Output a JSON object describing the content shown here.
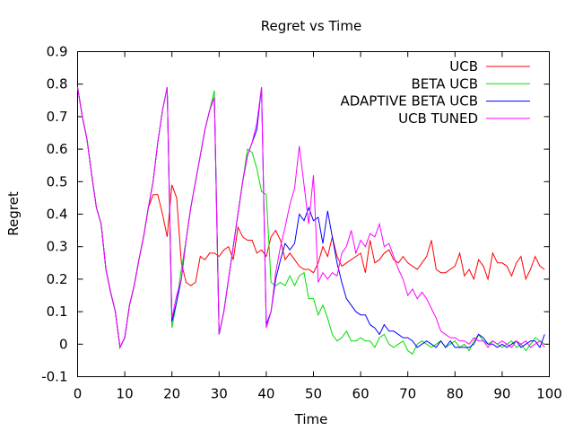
{
  "chart_data": {
    "type": "line",
    "title": "Regret vs Time",
    "xlabel": "Time",
    "ylabel": "Regret",
    "xlim": [
      0,
      100
    ],
    "ylim": [
      -0.1,
      0.9
    ],
    "xticks": [
      0,
      10,
      20,
      30,
      40,
      50,
      60,
      70,
      80,
      90,
      100
    ],
    "yticks": [
      -0.1,
      0,
      0.1,
      0.2,
      0.3,
      0.4,
      0.5,
      0.6,
      0.7,
      0.8,
      0.9
    ],
    "grid": false,
    "legend_position": "top-right",
    "series": [
      {
        "name": "UCB",
        "color": "#ff0000",
        "x": [
          0,
          1,
          2,
          3,
          4,
          5,
          6,
          7,
          8,
          9,
          10,
          11,
          12,
          13,
          14,
          15,
          16,
          17,
          18,
          19,
          20,
          21,
          22,
          23,
          24,
          25,
          26,
          27,
          28,
          29,
          30,
          31,
          32,
          33,
          34,
          35,
          36,
          37,
          38,
          39,
          40,
          41,
          42,
          43,
          44,
          45,
          46,
          47,
          48,
          49,
          50,
          51,
          52,
          53,
          54,
          55,
          56,
          57,
          58,
          59,
          60,
          61,
          62,
          63,
          64,
          65,
          66,
          67,
          68,
          69,
          70,
          71,
          72,
          73,
          74,
          75,
          76,
          77,
          78,
          79,
          80,
          81,
          82,
          83,
          84,
          85,
          86,
          87,
          88,
          89,
          90,
          91,
          92,
          93,
          94,
          95,
          96,
          97,
          98,
          99
        ],
        "y": [
          0.79,
          0.7,
          0.63,
          0.52,
          0.42,
          0.37,
          0.23,
          0.16,
          0.1,
          -0.01,
          0.02,
          0.12,
          0.18,
          0.26,
          0.33,
          0.42,
          0.46,
          0.46,
          0.4,
          0.33,
          0.49,
          0.45,
          0.25,
          0.19,
          0.18,
          0.19,
          0.27,
          0.26,
          0.28,
          0.28,
          0.27,
          0.29,
          0.3,
          0.26,
          0.36,
          0.33,
          0.32,
          0.32,
          0.28,
          0.29,
          0.27,
          0.33,
          0.35,
          0.32,
          0.26,
          0.28,
          0.26,
          0.24,
          0.23,
          0.23,
          0.22,
          0.25,
          0.3,
          0.27,
          0.33,
          0.27,
          0.24,
          0.25,
          0.26,
          0.27,
          0.28,
          0.22,
          0.32,
          0.25,
          0.26,
          0.28,
          0.29,
          0.26,
          0.25,
          0.27,
          0.25,
          0.24,
          0.23,
          0.25,
          0.27,
          0.32,
          0.23,
          0.22,
          0.22,
          0.23,
          0.24,
          0.28,
          0.21,
          0.23,
          0.2,
          0.26,
          0.24,
          0.2,
          0.28,
          0.25,
          0.25,
          0.24,
          0.21,
          0.25,
          0.27,
          0.2,
          0.23,
          0.27,
          0.24,
          0.23
        ]
      },
      {
        "name": "BETA UCB",
        "color": "#00dd00",
        "x": [
          0,
          1,
          2,
          3,
          4,
          5,
          6,
          7,
          8,
          9,
          10,
          11,
          12,
          13,
          14,
          15,
          16,
          17,
          18,
          19,
          20,
          21,
          22,
          23,
          24,
          25,
          26,
          27,
          28,
          29,
          30,
          31,
          32,
          33,
          34,
          35,
          36,
          37,
          38,
          39,
          40,
          41,
          42,
          43,
          44,
          45,
          46,
          47,
          48,
          49,
          50,
          51,
          52,
          53,
          54,
          55,
          56,
          57,
          58,
          59,
          60,
          61,
          62,
          63,
          64,
          65,
          66,
          67,
          68,
          69,
          70,
          71,
          72,
          73,
          74,
          75,
          76,
          77,
          78,
          79,
          80,
          81,
          82,
          83,
          84,
          85,
          86,
          87,
          88,
          89,
          90,
          91,
          92,
          93,
          94,
          95,
          96,
          97,
          98,
          99
        ],
        "y": [
          0.79,
          0.7,
          0.63,
          0.52,
          0.42,
          0.37,
          0.23,
          0.16,
          0.1,
          -0.01,
          0.02,
          0.12,
          0.18,
          0.26,
          0.33,
          0.42,
          0.5,
          0.62,
          0.72,
          0.79,
          0.05,
          0.13,
          0.23,
          0.32,
          0.42,
          0.5,
          0.58,
          0.66,
          0.72,
          0.78,
          0.03,
          0.1,
          0.2,
          0.3,
          0.4,
          0.5,
          0.6,
          0.59,
          0.54,
          0.47,
          0.46,
          0.19,
          0.18,
          0.19,
          0.18,
          0.21,
          0.18,
          0.21,
          0.22,
          0.14,
          0.14,
          0.09,
          0.12,
          0.08,
          0.03,
          0.01,
          0.02,
          0.04,
          0.01,
          0.01,
          0.02,
          0.01,
          0.01,
          -0.01,
          0.02,
          0.03,
          0.0,
          -0.01,
          0.0,
          0.01,
          -0.02,
          -0.03,
          0.0,
          0.01,
          0.0,
          -0.01,
          0.0,
          0.01,
          -0.01,
          0.0,
          0.01,
          -0.01,
          0.0,
          -0.02,
          0.01,
          0.03,
          0.01,
          0.0,
          0.01,
          0.0,
          -0.01,
          0.0,
          0.01,
          -0.01,
          0.0,
          -0.02,
          0.0,
          0.02,
          0.01,
          0.0
        ]
      },
      {
        "name": "ADAPTIVE BETA UCB",
        "color": "#0000ff",
        "x": [
          0,
          1,
          2,
          3,
          4,
          5,
          6,
          7,
          8,
          9,
          10,
          11,
          12,
          13,
          14,
          15,
          16,
          17,
          18,
          19,
          20,
          21,
          22,
          23,
          24,
          25,
          26,
          27,
          28,
          29,
          30,
          31,
          32,
          33,
          34,
          35,
          36,
          37,
          38,
          39,
          40,
          41,
          42,
          43,
          44,
          45,
          46,
          47,
          48,
          49,
          50,
          51,
          52,
          53,
          54,
          55,
          56,
          57,
          58,
          59,
          60,
          61,
          62,
          63,
          64,
          65,
          66,
          67,
          68,
          69,
          70,
          71,
          72,
          73,
          74,
          75,
          76,
          77,
          78,
          79,
          80,
          81,
          82,
          83,
          84,
          85,
          86,
          87,
          88,
          89,
          90,
          91,
          92,
          93,
          94,
          95,
          96,
          97,
          98,
          99
        ],
        "y": [
          0.79,
          0.7,
          0.63,
          0.52,
          0.42,
          0.37,
          0.23,
          0.16,
          0.1,
          -0.01,
          0.02,
          0.12,
          0.18,
          0.26,
          0.33,
          0.42,
          0.5,
          0.62,
          0.72,
          0.79,
          0.07,
          0.13,
          0.2,
          0.32,
          0.42,
          0.5,
          0.58,
          0.66,
          0.72,
          0.76,
          0.03,
          0.1,
          0.2,
          0.3,
          0.4,
          0.5,
          0.58,
          0.62,
          0.66,
          0.79,
          0.06,
          0.1,
          0.2,
          0.26,
          0.31,
          0.29,
          0.31,
          0.4,
          0.38,
          0.42,
          0.38,
          0.39,
          0.31,
          0.41,
          0.33,
          0.25,
          0.19,
          0.14,
          0.12,
          0.1,
          0.09,
          0.09,
          0.06,
          0.05,
          0.03,
          0.06,
          0.04,
          0.04,
          0.03,
          0.02,
          0.02,
          0.01,
          -0.01,
          0.0,
          0.01,
          0.0,
          -0.01,
          0.01,
          -0.01,
          0.01,
          -0.01,
          -0.01,
          -0.01,
          -0.01,
          0.0,
          0.03,
          0.02,
          0.0,
          0.0,
          -0.01,
          0.0,
          -0.01,
          0.0,
          0.01,
          -0.01,
          0.0,
          0.01,
          0.01,
          -0.01,
          0.03
        ]
      },
      {
        "name": "UCB TUNED",
        "color": "#ff00ff",
        "x": [
          0,
          1,
          2,
          3,
          4,
          5,
          6,
          7,
          8,
          9,
          10,
          11,
          12,
          13,
          14,
          15,
          16,
          17,
          18,
          19,
          20,
          21,
          22,
          23,
          24,
          25,
          26,
          27,
          28,
          29,
          30,
          31,
          32,
          33,
          34,
          35,
          36,
          37,
          38,
          39,
          40,
          41,
          42,
          43,
          44,
          45,
          46,
          47,
          48,
          49,
          50,
          51,
          52,
          53,
          54,
          55,
          56,
          57,
          58,
          59,
          60,
          61,
          62,
          63,
          64,
          65,
          66,
          67,
          68,
          69,
          70,
          71,
          72,
          73,
          74,
          75,
          76,
          77,
          78,
          79,
          80,
          81,
          82,
          83,
          84,
          85,
          86,
          87,
          88,
          89,
          90,
          91,
          92,
          93,
          94,
          95,
          96,
          97,
          98,
          99
        ],
        "y": [
          0.79,
          0.7,
          0.63,
          0.52,
          0.42,
          0.37,
          0.23,
          0.16,
          0.1,
          -0.01,
          0.02,
          0.12,
          0.18,
          0.26,
          0.33,
          0.42,
          0.5,
          0.62,
          0.72,
          0.79,
          0.08,
          0.15,
          0.2,
          0.32,
          0.42,
          0.5,
          0.58,
          0.66,
          0.72,
          0.76,
          0.03,
          0.1,
          0.2,
          0.3,
          0.4,
          0.5,
          0.58,
          0.62,
          0.68,
          0.79,
          0.05,
          0.1,
          0.22,
          0.3,
          0.36,
          0.43,
          0.48,
          0.61,
          0.49,
          0.37,
          0.52,
          0.19,
          0.22,
          0.2,
          0.22,
          0.21,
          0.28,
          0.3,
          0.35,
          0.28,
          0.32,
          0.3,
          0.34,
          0.33,
          0.37,
          0.3,
          0.31,
          0.27,
          0.23,
          0.2,
          0.15,
          0.17,
          0.14,
          0.16,
          0.14,
          0.11,
          0.08,
          0.04,
          0.03,
          0.02,
          0.02,
          0.01,
          0.01,
          0.0,
          0.02,
          0.01,
          0.01,
          -0.01,
          0.01,
          0.0,
          0.01,
          0.0,
          -0.01,
          0.01,
          0.0,
          0.01,
          -0.01,
          0.0,
          0.01,
          -0.01
        ]
      }
    ]
  }
}
